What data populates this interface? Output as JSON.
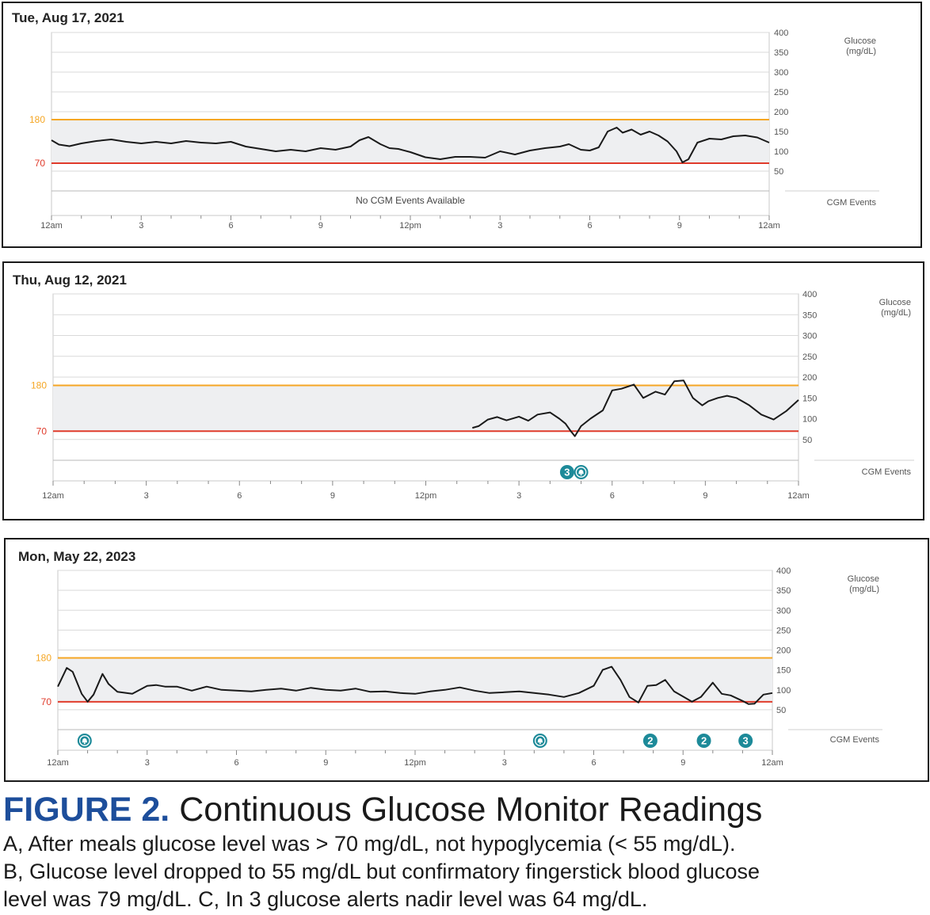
{
  "figure": {
    "label": "FIGURE 2.",
    "title": "Continuous Glucose Monitor Readings",
    "caption": [
      "A, After meals glucose level was > 70 mg/dL, not hypoglycemia (< 55 mg/dL).",
      "B, Glucose level dropped to 55 mg/dL but confirmatory fingerstick blood glucose",
      "level was 79 mg/dL. C, In 3 glucose alerts nadir level was 64 mg/dL."
    ]
  },
  "colors": {
    "high_threshold": "#f5a623",
    "low_threshold": "#e03b2b",
    "target_band": "#eeeff1",
    "trace": "#1a1a1a",
    "event_marker": "#1d8a99",
    "grid": "#d9d9d9",
    "axis_text": "#555555"
  },
  "chart_data": [
    {
      "type": "line",
      "title": "Tue, Aug 17, 2021",
      "x_ticks": [
        "12am",
        "3",
        "6",
        "9",
        "12pm",
        "3",
        "6",
        "9",
        "12am"
      ],
      "x_range_hours": [
        0,
        24
      ],
      "y_ticks": [
        400,
        350,
        300,
        250,
        200,
        150,
        100,
        50
      ],
      "ylim": [
        0,
        400
      ],
      "ylabel": "Glucose\n(mg/dL)",
      "thresholds": {
        "high": 180,
        "low": 70
      },
      "threshold_labels": [
        "180",
        "70"
      ],
      "events_label": "CGM Events",
      "events_message": "No CGM Events Available",
      "events": [],
      "series": [
        {
          "x": [
            0,
            0.25,
            0.6,
            1,
            1.5,
            2,
            2.5,
            3,
            3.5,
            4,
            4.5,
            5,
            5.5,
            6,
            6.5,
            7,
            7.5,
            8,
            8.5,
            9,
            9.5,
            10,
            10.3,
            10.6,
            11,
            11.3,
            11.6,
            12,
            12.5,
            13,
            13.5,
            14,
            14.5,
            15,
            15.5,
            16,
            16.5,
            17,
            17.3,
            17.7,
            18,
            18.3,
            18.6,
            18.9,
            19.1,
            19.4,
            19.7,
            20,
            20.3,
            20.6,
            20.9,
            21.1,
            21.3,
            21.6,
            22,
            22.4,
            22.8,
            23.2,
            23.6,
            24
          ],
          "y": [
            128,
            117,
            113,
            120,
            126,
            130,
            124,
            120,
            124,
            120,
            126,
            122,
            120,
            124,
            112,
            106,
            100,
            104,
            100,
            108,
            104,
            112,
            128,
            136,
            118,
            108,
            106,
            98,
            85,
            80,
            86,
            86,
            84,
            100,
            92,
            102,
            108,
            112,
            118,
            104,
            102,
            110,
            150,
            160,
            147,
            155,
            142,
            150,
            140,
            125,
            100,
            72,
            80,
            122,
            132,
            130,
            138,
            140,
            135,
            122
          ]
        }
      ]
    },
    {
      "type": "line",
      "title": "Thu, Aug 12, 2021",
      "x_ticks": [
        "12am",
        "3",
        "6",
        "9",
        "12pm",
        "3",
        "6",
        "9",
        "12am"
      ],
      "x_range_hours": [
        0,
        24
      ],
      "y_ticks": [
        400,
        350,
        300,
        250,
        200,
        150,
        100,
        50
      ],
      "ylim": [
        0,
        400
      ],
      "ylabel": "Glucose\n(mg/dL)",
      "thresholds": {
        "high": 180,
        "low": 70
      },
      "threshold_labels": [
        "180",
        "70"
      ],
      "events_label": "CGM Events",
      "events_message": "",
      "events": [
        {
          "hour": 16.55,
          "kind": "number",
          "label": "3"
        },
        {
          "hour": 17.0,
          "kind": "bell",
          "label": ""
        }
      ],
      "series": [
        {
          "x": [
            13.5,
            13.7,
            14,
            14.3,
            14.6,
            15,
            15.3,
            15.6,
            16,
            16.3,
            16.5,
            16.65,
            16.8,
            17,
            17.3,
            17.7,
            18,
            18.3,
            18.7,
            19,
            19.4,
            19.7,
            20,
            20.3,
            20.6,
            20.9,
            21.1,
            21.4,
            21.7,
            22,
            22.4,
            22.8,
            23.2,
            23.6,
            24
          ],
          "y": [
            78,
            82,
            98,
            104,
            96,
            105,
            95,
            110,
            115,
            100,
            88,
            72,
            58,
            82,
            100,
            120,
            168,
            172,
            182,
            150,
            165,
            158,
            190,
            192,
            150,
            132,
            142,
            150,
            155,
            150,
            133,
            110,
            98,
            118,
            145
          ]
        }
      ]
    },
    {
      "type": "line",
      "title": "Mon, May 22, 2023",
      "x_ticks": [
        "12am",
        "3",
        "6",
        "9",
        "12pm",
        "3",
        "6",
        "9",
        "12am"
      ],
      "x_range_hours": [
        0,
        24
      ],
      "y_ticks": [
        400,
        350,
        300,
        250,
        200,
        150,
        100,
        50
      ],
      "ylim": [
        0,
        400
      ],
      "ylabel": "Glucose\n(mg/dL)",
      "thresholds": {
        "high": 180,
        "low": 70
      },
      "threshold_labels": [
        "180",
        "70"
      ],
      "events_label": "CGM Events",
      "events_message": "",
      "events": [
        {
          "hour": 0.9,
          "kind": "bell",
          "label": ""
        },
        {
          "hour": 16.2,
          "kind": "bell",
          "label": ""
        },
        {
          "hour": 19.9,
          "kind": "number",
          "label": "2"
        },
        {
          "hour": 21.7,
          "kind": "number",
          "label": "2"
        },
        {
          "hour": 23.1,
          "kind": "number",
          "label": "3"
        }
      ],
      "series": [
        {
          "x": [
            0,
            0.3,
            0.5,
            0.8,
            1.0,
            1.2,
            1.5,
            1.7,
            2.0,
            2.5,
            3.0,
            3.3,
            3.6,
            4.0,
            4.5,
            5.0,
            5.5,
            6.0,
            6.5,
            7.0,
            7.5,
            8.0,
            8.5,
            9.0,
            9.5,
            10,
            10.5,
            11,
            11.5,
            12,
            12.5,
            13,
            13.5,
            14,
            14.5,
            15,
            15.5,
            16,
            16.5,
            17,
            17.5,
            18,
            18.3,
            18.6,
            18.9,
            19.2,
            19.5,
            19.8,
            20.1,
            20.4,
            20.7,
            21.0,
            21.3,
            21.6,
            22.0,
            22.3,
            22.6,
            23.0,
            23.2,
            23.4,
            23.7,
            24
          ],
          "y": [
            108,
            155,
            145,
            90,
            70,
            88,
            140,
            115,
            95,
            90,
            110,
            112,
            108,
            108,
            98,
            108,
            100,
            98,
            96,
            100,
            103,
            98,
            105,
            100,
            98,
            103,
            95,
            96,
            92,
            90,
            96,
            100,
            106,
            98,
            92,
            94,
            96,
            92,
            88,
            82,
            92,
            110,
            150,
            158,
            125,
            82,
            68,
            110,
            112,
            125,
            96,
            83,
            70,
            82,
            118,
            90,
            86,
            72,
            64,
            65,
            88,
            92
          ]
        }
      ]
    }
  ]
}
